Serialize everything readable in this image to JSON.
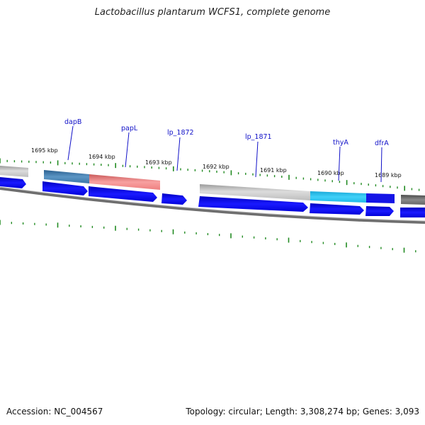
{
  "title": "Lactobacillus plantarum WCFS1, complete genome",
  "footer": {
    "accession": "Accession: NC_004567",
    "stats": "Topology: circular; Length: 3,308,274 bp; Genes: 3,093"
  },
  "ticks": [
    "1695 kbp",
    "1694 kbp",
    "1693 kbp",
    "1692 kbp",
    "1691 kbp",
    "1690 kbp",
    "1689 kbp"
  ],
  "gene_labels": [
    "dapB",
    "papL",
    "lp_1872",
    "lp_1871",
    "thyA",
    "dfrA"
  ],
  "colors": {
    "label_blue": "#1010c8",
    "cds_blue": "#0a0af0",
    "tick_green": "#228b22",
    "backbone": "#777777",
    "dapB": "#3f7fb0",
    "papL": "#f08080",
    "lp_1871": "#c9c9c9",
    "thyA": "#22c0ee",
    "dfrA": "#1414e6"
  }
}
